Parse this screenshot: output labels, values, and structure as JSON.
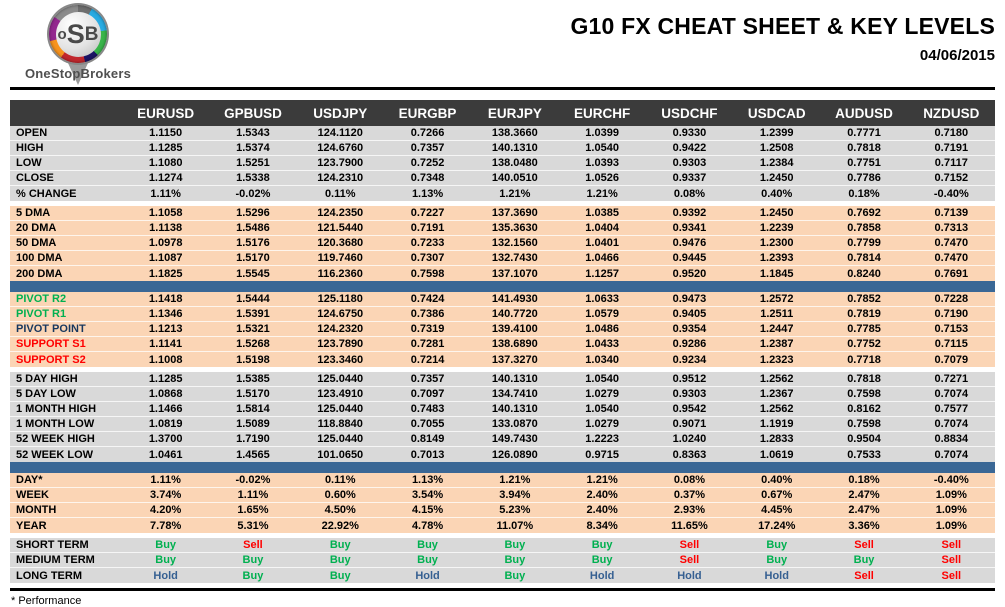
{
  "header": {
    "title": "G10 FX CHEAT SHEET & KEY LEVELS",
    "date": "04/06/2015",
    "logo": {
      "letter_o": "o",
      "letter_s": "S",
      "letter_b": "B",
      "brand": "OneStopBrokers"
    }
  },
  "colors": {
    "buy": "#00B050",
    "sell": "#FF0000",
    "hold": "#366092",
    "pivot_resistance": "#00B050",
    "pivot_point": "#17375E",
    "support": "#FF0000",
    "header_bg": "#3B3B3B",
    "section_gray": "#D9D9D9",
    "section_peach": "#FBD5B5",
    "blue_bar": "#3A6795"
  },
  "table": {
    "columns": [
      "EURUSD",
      "GPBUSD",
      "USDJPY",
      "EURGBP",
      "EURJPY",
      "EURCHF",
      "USDCHF",
      "USDCAD",
      "AUDUSD",
      "NZDUSD"
    ],
    "sections": [
      {
        "id": "ohlc",
        "bg": "gray",
        "divider": "none",
        "rows": [
          {
            "label": "OPEN",
            "values": [
              "1.1150",
              "1.5343",
              "124.1120",
              "0.7266",
              "138.3660",
              "1.0399",
              "0.9330",
              "1.2399",
              "0.7771",
              "0.7180"
            ]
          },
          {
            "label": "HIGH",
            "values": [
              "1.1285",
              "1.5374",
              "124.6760",
              "0.7357",
              "140.1310",
              "1.0540",
              "0.9422",
              "1.2508",
              "0.7818",
              "0.7191"
            ]
          },
          {
            "label": "LOW",
            "values": [
              "1.1080",
              "1.5251",
              "123.7900",
              "0.7252",
              "138.0480",
              "1.0393",
              "0.9303",
              "1.2384",
              "0.7751",
              "0.7117"
            ]
          },
          {
            "label": "CLOSE",
            "values": [
              "1.1274",
              "1.5338",
              "124.2310",
              "0.7348",
              "140.0510",
              "1.0526",
              "0.9337",
              "1.2450",
              "0.7786",
              "0.7152"
            ]
          },
          {
            "label": "% CHANGE",
            "values": [
              "1.11%",
              "-0.02%",
              "0.11%",
              "1.13%",
              "1.21%",
              "1.21%",
              "0.08%",
              "0.40%",
              "0.18%",
              "-0.40%"
            ]
          }
        ]
      },
      {
        "id": "dma",
        "bg": "peach",
        "divider": "gap",
        "rows": [
          {
            "label": "5 DMA",
            "values": [
              "1.1058",
              "1.5296",
              "124.2350",
              "0.7227",
              "137.3690",
              "1.0385",
              "0.9392",
              "1.2450",
              "0.7692",
              "0.7139"
            ]
          },
          {
            "label": "20 DMA",
            "values": [
              "1.1138",
              "1.5486",
              "121.5440",
              "0.7191",
              "135.3630",
              "1.0404",
              "0.9341",
              "1.2239",
              "0.7858",
              "0.7313"
            ]
          },
          {
            "label": "50 DMA",
            "values": [
              "1.0978",
              "1.5176",
              "120.3680",
              "0.7233",
              "132.1560",
              "1.0401",
              "0.9476",
              "1.2300",
              "0.7799",
              "0.7470"
            ]
          },
          {
            "label": "100 DMA",
            "values": [
              "1.1087",
              "1.5170",
              "119.7460",
              "0.7307",
              "132.7430",
              "1.0466",
              "0.9445",
              "1.2393",
              "0.7814",
              "0.7470"
            ]
          },
          {
            "label": "200 DMA",
            "values": [
              "1.1825",
              "1.5545",
              "116.2360",
              "0.7598",
              "137.1070",
              "1.1257",
              "0.9520",
              "1.1845",
              "0.8240",
              "0.7691"
            ]
          }
        ]
      },
      {
        "id": "pivots",
        "bg": "peach",
        "divider": "blue",
        "rows": [
          {
            "label": "PIVOT R2",
            "label_color": "#00B050",
            "values": [
              "1.1418",
              "1.5444",
              "125.1180",
              "0.7424",
              "141.4930",
              "1.0633",
              "0.9473",
              "1.2572",
              "0.7852",
              "0.7228"
            ]
          },
          {
            "label": "PIVOT R1",
            "label_color": "#00B050",
            "values": [
              "1.1346",
              "1.5391",
              "124.6750",
              "0.7386",
              "140.7720",
              "1.0579",
              "0.9405",
              "1.2511",
              "0.7819",
              "0.7190"
            ]
          },
          {
            "label": "PIVOT POINT",
            "label_color": "#17375E",
            "values": [
              "1.1213",
              "1.5321",
              "124.2320",
              "0.7319",
              "139.4100",
              "1.0486",
              "0.9354",
              "1.2447",
              "0.7785",
              "0.7153"
            ]
          },
          {
            "label": "SUPPORT S1",
            "label_color": "#FF0000",
            "values": [
              "1.1141",
              "1.5268",
              "123.7890",
              "0.7281",
              "138.6890",
              "1.0433",
              "0.9286",
              "1.2387",
              "0.7752",
              "0.7115"
            ]
          },
          {
            "label": "SUPPORT S2",
            "label_color": "#FF0000",
            "values": [
              "1.1008",
              "1.5198",
              "123.3460",
              "0.7214",
              "137.3270",
              "1.0340",
              "0.9234",
              "1.2323",
              "0.7718",
              "0.7079"
            ]
          }
        ]
      },
      {
        "id": "ranges",
        "bg": "gray",
        "divider": "gap",
        "rows": [
          {
            "label": "5 DAY HIGH",
            "values": [
              "1.1285",
              "1.5385",
              "125.0440",
              "0.7357",
              "140.1310",
              "1.0540",
              "0.9512",
              "1.2562",
              "0.7818",
              "0.7271"
            ]
          },
          {
            "label": "5 DAY LOW",
            "values": [
              "1.0868",
              "1.5170",
              "123.4910",
              "0.7097",
              "134.7410",
              "1.0279",
              "0.9303",
              "1.2367",
              "0.7598",
              "0.7074"
            ]
          },
          {
            "label": "1 MONTH HIGH",
            "values": [
              "1.1466",
              "1.5814",
              "125.0440",
              "0.7483",
              "140.1310",
              "1.0540",
              "0.9542",
              "1.2562",
              "0.8162",
              "0.7577"
            ]
          },
          {
            "label": "1 MONTH LOW",
            "values": [
              "1.0819",
              "1.5089",
              "118.8840",
              "0.7055",
              "133.0870",
              "1.0279",
              "0.9071",
              "1.1919",
              "0.7598",
              "0.7074"
            ]
          },
          {
            "label": "52 WEEK HIGH",
            "values": [
              "1.3700",
              "1.7190",
              "125.0440",
              "0.8149",
              "149.7430",
              "1.2223",
              "1.0240",
              "1.2833",
              "0.9504",
              "0.8834"
            ]
          },
          {
            "label": "52 WEEK LOW",
            "values": [
              "1.0461",
              "1.4565",
              "101.0650",
              "0.7013",
              "126.0890",
              "0.9715",
              "0.8363",
              "1.0619",
              "0.7533",
              "0.7074"
            ]
          }
        ]
      },
      {
        "id": "performance",
        "bg": "peach",
        "divider": "blue",
        "rows": [
          {
            "label": "DAY*",
            "values": [
              "1.11%",
              "-0.02%",
              "0.11%",
              "1.13%",
              "1.21%",
              "1.21%",
              "0.08%",
              "0.40%",
              "0.18%",
              "-0.40%"
            ]
          },
          {
            "label": "WEEK",
            "values": [
              "3.74%",
              "1.11%",
              "0.60%",
              "3.54%",
              "3.94%",
              "2.40%",
              "0.37%",
              "0.67%",
              "2.47%",
              "1.09%"
            ]
          },
          {
            "label": "MONTH",
            "values": [
              "4.20%",
              "1.65%",
              "4.50%",
              "4.15%",
              "5.23%",
              "2.40%",
              "2.93%",
              "4.45%",
              "2.47%",
              "1.09%"
            ]
          },
          {
            "label": "YEAR",
            "values": [
              "7.78%",
              "5.31%",
              "22.92%",
              "4.78%",
              "11.07%",
              "8.34%",
              "11.65%",
              "17.24%",
              "3.36%",
              "1.09%"
            ]
          }
        ]
      },
      {
        "id": "signals",
        "bg": "gray",
        "divider": "gap",
        "signal_colors": true,
        "rows": [
          {
            "label": "SHORT TERM",
            "values": [
              "Buy",
              "Sell",
              "Buy",
              "Buy",
              "Buy",
              "Buy",
              "Sell",
              "Buy",
              "Sell",
              "Sell"
            ]
          },
          {
            "label": "MEDIUM TERM",
            "values": [
              "Buy",
              "Buy",
              "Buy",
              "Buy",
              "Buy",
              "Buy",
              "Sell",
              "Buy",
              "Buy",
              "Sell"
            ]
          },
          {
            "label": "LONG TERM",
            "values": [
              "Hold",
              "Buy",
              "Buy",
              "Hold",
              "Buy",
              "Hold",
              "Hold",
              "Hold",
              "Sell",
              "Sell"
            ]
          }
        ]
      }
    ]
  },
  "footer": {
    "note": "* Performance"
  }
}
